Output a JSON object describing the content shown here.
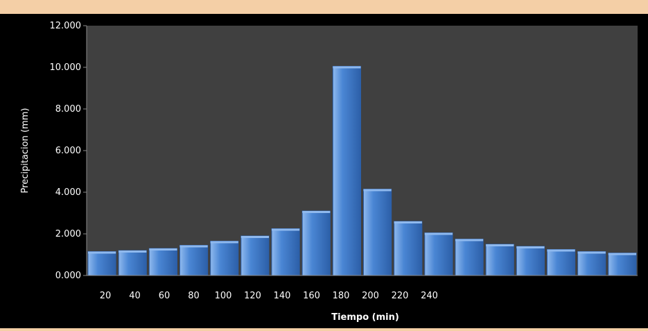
{
  "chart_data": {
    "type": "bar",
    "title": "",
    "xlabel": "Tiempo (min)",
    "ylabel": "Precipitacion (mm)",
    "ylim": [
      0,
      12
    ],
    "y_ticks": [
      0,
      2,
      4,
      6,
      8,
      10,
      12
    ],
    "y_tick_labels": [
      "0.000",
      "2.000",
      "4.000",
      "6.000",
      "8.000",
      "10.000",
      "12.000"
    ],
    "x_tick_labels": [
      "20",
      "40",
      "60",
      "80",
      "100",
      "120",
      "140",
      "160",
      "180",
      "200",
      "220",
      "240"
    ],
    "values": [
      1.15,
      1.2,
      1.3,
      1.45,
      1.65,
      1.9,
      2.25,
      3.1,
      10.05,
      4.15,
      2.6,
      2.05,
      1.75,
      1.5,
      1.4,
      1.25,
      1.15,
      1.08
    ],
    "grid": false,
    "legend": "none",
    "colors": {
      "page_background": "#f4cfa6",
      "chart_background": "#000000",
      "plot_background": "#404040",
      "bar_fill": "#4a86d4",
      "bar_highlight": "#8fb9ee",
      "bar_shadow": "#2c5fa8",
      "text": "#ffffff"
    }
  }
}
